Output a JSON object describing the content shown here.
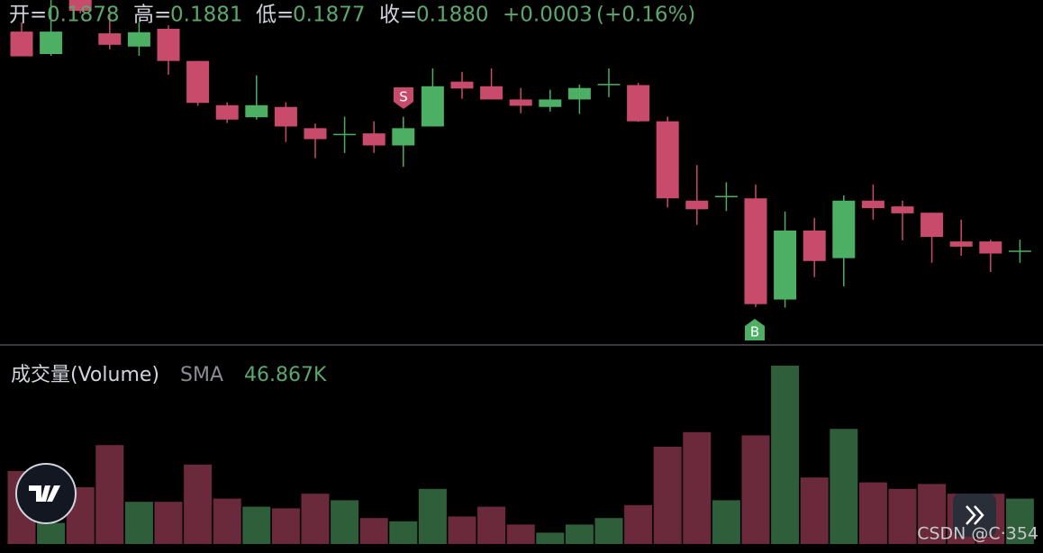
{
  "header": {
    "open_label": "开=",
    "open": "0.1878",
    "high_label": "高=",
    "high": "0.1881",
    "low_label": "低=",
    "low": "0.1877",
    "close_label": "收=",
    "close": "0.1880",
    "change": "+0.0003",
    "change_pct": "(+0.16%)"
  },
  "chart_data": [
    {
      "type": "candlestick",
      "open": [
        0.19195,
        0.19156,
        0.1925,
        0.19192,
        0.19169,
        0.192,
        0.19144,
        0.19067,
        0.19046,
        0.19064,
        0.19027,
        0.19016,
        0.19018,
        0.18997,
        0.1903,
        0.19108,
        0.191,
        0.19077,
        0.19064,
        0.19077,
        0.19103,
        0.19102,
        0.19039,
        0.18901,
        0.18908,
        0.18905,
        0.18729,
        0.18849,
        0.18801,
        0.18901,
        0.18891,
        0.1888,
        0.1883,
        0.1883,
        0.18813
      ],
      "high": [
        0.19211,
        0.1925,
        0.1925,
        0.19227,
        0.19211,
        0.19206,
        0.19144,
        0.19072,
        0.19119,
        0.19072,
        0.19035,
        0.19047,
        0.19039,
        0.19047,
        0.19131,
        0.19125,
        0.19131,
        0.19097,
        0.19094,
        0.19103,
        0.19131,
        0.19106,
        0.19047,
        0.18963,
        0.18933,
        0.18929,
        0.18882,
        0.18871,
        0.1891,
        0.18929,
        0.18901,
        0.1888,
        0.18868,
        0.18833,
        0.18833
      ],
      "low": [
        0.19152,
        0.19153,
        0.19227,
        0.19164,
        0.19153,
        0.1912,
        0.19066,
        0.19036,
        0.19042,
        0.19003,
        0.18975,
        0.18984,
        0.18984,
        0.1896,
        0.1903,
        0.19078,
        0.19077,
        0.19053,
        0.19056,
        0.19052,
        0.19081,
        0.19038,
        0.18889,
        0.18859,
        0.18883,
        0.18716,
        0.18715,
        0.18768,
        0.18752,
        0.18868,
        0.18832,
        0.18793,
        0.18805,
        0.18777,
        0.18793
      ],
      "close": [
        0.19152,
        0.19195,
        0.19231,
        0.19172,
        0.19194,
        0.19144,
        0.19071,
        0.19042,
        0.19067,
        0.1903,
        0.19008,
        0.19016,
        0.18997,
        0.19027,
        0.191,
        0.19096,
        0.19077,
        0.19066,
        0.19077,
        0.19097,
        0.19103,
        0.19039,
        0.18905,
        0.18886,
        0.18908,
        0.18721,
        0.18849,
        0.18796,
        0.18901,
        0.18888,
        0.18879,
        0.18838,
        0.18821,
        0.18809,
        0.18813
      ],
      "ylim": [
        0.1865,
        0.1925
      ],
      "up_color": "#4caf64",
      "down_color": "#c94b6b",
      "signals": [
        "S",
        "B"
      ]
    },
    {
      "type": "bar",
      "title": "成交量(Volume)",
      "indicator": "SMA",
      "indicator_value": "46.867K",
      "values": [
        45,
        13,
        35,
        61,
        26,
        26,
        49,
        28,
        23,
        22,
        31,
        27,
        16,
        14,
        34,
        17,
        23,
        12,
        7,
        12,
        16,
        24,
        60,
        69,
        27,
        67,
        110,
        41,
        71,
        38,
        34,
        37,
        31,
        31,
        28
      ],
      "ylim": [
        0,
        110
      ],
      "up_color": "#2f5e3a",
      "down_color": "#6b2a3b"
    }
  ],
  "watermark": "CSDN @C·354"
}
